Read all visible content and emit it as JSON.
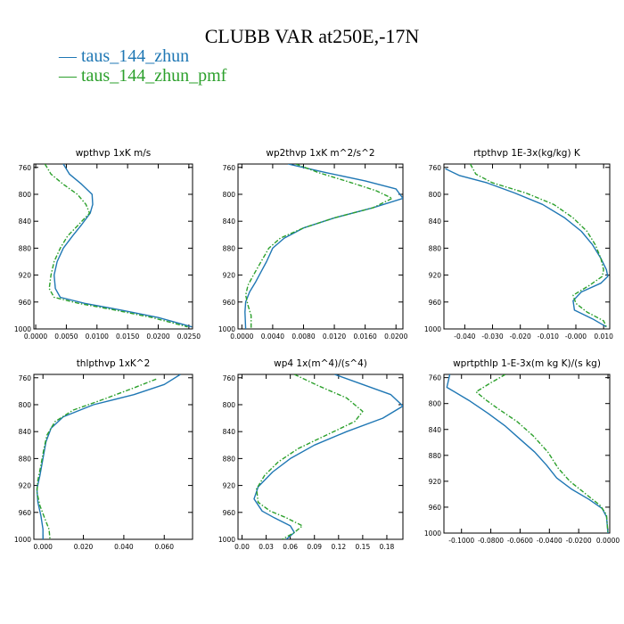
{
  "title": "CLUBB VAR at250E,-17N",
  "colors": {
    "series_0": "#1f77b4",
    "series_1": "#2ca02c"
  },
  "legend": [
    {
      "prefix": "— ",
      "label": "taus_144_zhun"
    },
    {
      "prefix": "— ",
      "label": "taus_144_zhun_pmf"
    }
  ],
  "chart_data": [
    {
      "type": "line",
      "title": "wpthvp  1xK m/s",
      "xlim": [
        -0.0003,
        0.0256
      ],
      "ylim": [
        755,
        1000
      ],
      "y_inverted": true,
      "xticks": [
        0.0,
        0.005,
        0.01,
        0.015,
        0.02,
        0.025
      ],
      "xtick_labels": [
        "0.0000",
        "0.0050",
        "0.0100",
        "0.0150",
        "0.0200",
        "0.0250"
      ],
      "yticks": [
        760,
        800,
        840,
        880,
        920,
        960,
        1000
      ],
      "ytick_labels": [
        "760",
        "800",
        "840",
        "880",
        "920",
        "960",
        "1000"
      ],
      "series": [
        {
          "name": "taus_144_zhun",
          "points": [
            [
              0.0045,
              755
            ],
            [
              0.0055,
              770
            ],
            [
              0.0075,
              785
            ],
            [
              0.0092,
              800
            ],
            [
              0.0093,
              815
            ],
            [
              0.0089,
              828
            ],
            [
              0.0075,
              845
            ],
            [
              0.006,
              862
            ],
            [
              0.0045,
              880
            ],
            [
              0.0035,
              900
            ],
            [
              0.003,
              920
            ],
            [
              0.0032,
              940
            ],
            [
              0.004,
              953
            ],
            [
              0.008,
              962
            ],
            [
              0.014,
              972
            ],
            [
              0.02,
              983
            ],
            [
              0.0255,
              997
            ]
          ]
        },
        {
          "name": "taus_144_zhun_pmf",
          "points": [
            [
              0.0015,
              755
            ],
            [
              0.0025,
              770
            ],
            [
              0.0045,
              785
            ],
            [
              0.0068,
              800
            ],
            [
              0.0082,
              815
            ],
            [
              0.0088,
              828
            ],
            [
              0.007,
              845
            ],
            [
              0.0052,
              862
            ],
            [
              0.004,
              880
            ],
            [
              0.003,
              900
            ],
            [
              0.0025,
              920
            ],
            [
              0.0022,
              940
            ],
            [
              0.003,
              953
            ],
            [
              0.007,
              962
            ],
            [
              0.013,
              972
            ],
            [
              0.019,
              983
            ],
            [
              0.0248,
              997
            ]
          ]
        }
      ]
    },
    {
      "type": "line",
      "title": "wp2thvp  1xK m^2/s^2",
      "xlim": [
        -0.0005,
        0.0209
      ],
      "ylim": [
        755,
        1000
      ],
      "y_inverted": true,
      "xticks": [
        0.0,
        0.004,
        0.008,
        0.012,
        0.016,
        0.02
      ],
      "xtick_labels": [
        "0.0000",
        "0.0040",
        "0.0080",
        "0.0120",
        "0.0160",
        "0.0200"
      ],
      "yticks": [
        760,
        800,
        840,
        880,
        920,
        960,
        1000
      ],
      "ytick_labels": [
        "760",
        "800",
        "840",
        "880",
        "920",
        "960",
        "1000"
      ],
      "series": [
        {
          "name": "taus_144_zhun",
          "points": [
            [
              0.006,
              755
            ],
            [
              0.011,
              768
            ],
            [
              0.016,
              780
            ],
            [
              0.02,
              792
            ],
            [
              0.0209,
              806
            ],
            [
              0.017,
              820
            ],
            [
              0.012,
              835
            ],
            [
              0.008,
              850
            ],
            [
              0.0055,
              865
            ],
            [
              0.004,
              880
            ],
            [
              0.0032,
              900
            ],
            [
              0.0025,
              915
            ],
            [
              0.0018,
              930
            ],
            [
              0.001,
              945
            ],
            [
              0.0005,
              960
            ],
            [
              0.0004,
              975
            ],
            [
              0.0005,
              1000
            ]
          ]
        },
        {
          "name": "taus_144_zhun_pmf",
          "points": [
            [
              0.007,
              755
            ],
            [
              0.01,
              768
            ],
            [
              0.014,
              782
            ],
            [
              0.0175,
              795
            ],
            [
              0.0195,
              806
            ],
            [
              0.017,
              820
            ],
            [
              0.012,
              835
            ],
            [
              0.008,
              850
            ],
            [
              0.005,
              865
            ],
            [
              0.0035,
              880
            ],
            [
              0.0025,
              900
            ],
            [
              0.0015,
              920
            ],
            [
              0.0008,
              935
            ],
            [
              0.0005,
              950
            ],
            [
              0.0008,
              965
            ],
            [
              0.0012,
              980
            ],
            [
              0.0012,
              1000
            ]
          ]
        }
      ]
    },
    {
      "type": "line",
      "title": "rtpthvp  1E-3x(kg/kg) K",
      "xlim": [
        -0.0475,
        0.0122
      ],
      "ylim": [
        755,
        1000
      ],
      "y_inverted": true,
      "xticks": [
        -0.04,
        -0.03,
        -0.02,
        -0.01,
        0.0,
        0.01
      ],
      "xtick_labels": [
        "-0.040",
        "-0.030",
        "-0.020",
        "-0.010",
        "-0.000",
        "0.010"
      ],
      "yticks": [
        760,
        800,
        840,
        880,
        920,
        960,
        1000
      ],
      "ytick_labels": [
        "760",
        "800",
        "840",
        "880",
        "920",
        "960",
        "1000"
      ],
      "series": [
        {
          "name": "taus_144_zhun",
          "points": [
            [
              -0.047,
              762
            ],
            [
              -0.042,
              772
            ],
            [
              -0.032,
              783
            ],
            [
              -0.022,
              798
            ],
            [
              -0.012,
              815
            ],
            [
              -0.004,
              835
            ],
            [
              0.002,
              855
            ],
            [
              0.006,
              875
            ],
            [
              0.009,
              895
            ],
            [
              0.011,
              912
            ],
            [
              0.0115,
              922
            ],
            [
              0.009,
              932
            ],
            [
              0.002,
              945
            ],
            [
              -0.001,
              958
            ],
            [
              -0.0005,
              972
            ],
            [
              0.006,
              985
            ],
            [
              0.011,
              997
            ]
          ]
        },
        {
          "name": "taus_144_zhun_pmf",
          "points": [
            [
              -0.038,
              755
            ],
            [
              -0.036,
              770
            ],
            [
              -0.03,
              783
            ],
            [
              -0.018,
              798
            ],
            [
              -0.008,
              815
            ],
            [
              -0.001,
              835
            ],
            [
              0.004,
              855
            ],
            [
              0.007,
              875
            ],
            [
              0.009,
              895
            ],
            [
              0.01,
              912
            ],
            [
              0.0095,
              922
            ],
            [
              0.005,
              935
            ],
            [
              -0.001,
              950
            ],
            [
              0.0,
              962
            ],
            [
              0.004,
              975
            ],
            [
              0.01,
              988
            ],
            [
              0.011,
              997
            ]
          ]
        }
      ]
    },
    {
      "type": "line",
      "title": "thlpthvp  1xK^2",
      "xlim": [
        -0.0045,
        0.074
      ],
      "ylim": [
        755,
        1000
      ],
      "y_inverted": true,
      "xticks": [
        0.0,
        0.02,
        0.04,
        0.06
      ],
      "xtick_labels": [
        "0.000",
        "0.020",
        "0.040",
        "0.060"
      ],
      "yticks": [
        760,
        800,
        840,
        880,
        920,
        960,
        1000
      ],
      "ytick_labels": [
        "760",
        "800",
        "840",
        "880",
        "920",
        "960",
        "1000"
      ],
      "series": [
        {
          "name": "taus_144_zhun",
          "points": [
            [
              0.068,
              755
            ],
            [
              0.06,
              770
            ],
            [
              0.045,
              785
            ],
            [
              0.025,
              800
            ],
            [
              0.01,
              818
            ],
            [
              0.004,
              835
            ],
            [
              0.0015,
              855
            ],
            [
              0.0,
              880
            ],
            [
              -0.0015,
              905
            ],
            [
              -0.003,
              925
            ],
            [
              -0.0025,
              945
            ],
            [
              -0.001,
              965
            ],
            [
              0.0,
              985
            ],
            [
              0.0,
              1000
            ]
          ]
        },
        {
          "name": "taus_144_zhun_pmf",
          "points": [
            [
              0.056,
              762
            ],
            [
              0.045,
              775
            ],
            [
              0.03,
              792
            ],
            [
              0.015,
              808
            ],
            [
              0.006,
              825
            ],
            [
              0.002,
              845
            ],
            [
              0.0005,
              865
            ],
            [
              -0.001,
              890
            ],
            [
              -0.0025,
              912
            ],
            [
              -0.003,
              930
            ],
            [
              -0.0015,
              950
            ],
            [
              0.001,
              970
            ],
            [
              0.003,
              985
            ],
            [
              0.0035,
              1000
            ]
          ]
        }
      ]
    },
    {
      "type": "line",
      "title": "wp4  1x(m^4)/(s^4)",
      "xlim": [
        -0.005,
        0.2
      ],
      "ylim": [
        755,
        1000
      ],
      "y_inverted": true,
      "xticks": [
        0.0,
        0.03,
        0.06,
        0.09,
        0.12,
        0.15,
        0.18
      ],
      "xtick_labels": [
        "0.00",
        "0.03",
        "0.06",
        "0.09",
        "0.12",
        "0.15",
        "0.18"
      ],
      "yticks": [
        760,
        800,
        840,
        880,
        920,
        960,
        1000
      ],
      "ytick_labels": [
        "760",
        "800",
        "840",
        "880",
        "920",
        "960",
        "1000"
      ],
      "series": [
        {
          "name": "taus_144_zhun",
          "points": [
            [
              0.115,
              755
            ],
            [
              0.15,
              770
            ],
            [
              0.185,
              785
            ],
            [
              0.2,
              802
            ],
            [
              0.175,
              820
            ],
            [
              0.13,
              840
            ],
            [
              0.09,
              860
            ],
            [
              0.06,
              880
            ],
            [
              0.038,
              900
            ],
            [
              0.02,
              922
            ],
            [
              0.015,
              940
            ],
            [
              0.025,
              958
            ],
            [
              0.04,
              968
            ],
            [
              0.06,
              980
            ],
            [
              0.065,
              990
            ],
            [
              0.055,
              1000
            ]
          ]
        },
        {
          "name": "taus_144_zhun_pmf",
          "points": [
            [
              0.065,
              755
            ],
            [
              0.095,
              772
            ],
            [
              0.13,
              790
            ],
            [
              0.15,
              810
            ],
            [
              0.14,
              825
            ],
            [
              0.105,
              845
            ],
            [
              0.07,
              865
            ],
            [
              0.045,
              885
            ],
            [
              0.028,
              905
            ],
            [
              0.018,
              925
            ],
            [
              0.02,
              945
            ],
            [
              0.035,
              958
            ],
            [
              0.055,
              968
            ],
            [
              0.075,
              980
            ],
            [
              0.065,
              990
            ],
            [
              0.05,
              1000
            ]
          ]
        }
      ]
    },
    {
      "type": "line",
      "title": "wprtpthlp  1-E-3x(m kg K)/(s kg)",
      "xlim": [
        -0.112,
        0.0012
      ],
      "ylim": [
        755,
        1000
      ],
      "y_inverted": true,
      "xticks": [
        -0.1,
        -0.08,
        -0.06,
        -0.04,
        -0.02,
        0.0
      ],
      "xtick_labels": [
        "-0.1000",
        "-0.0800",
        "-0.0600",
        "-0.0400",
        "-0.0200",
        "0.0000"
      ],
      "yticks": [
        760,
        800,
        840,
        880,
        920,
        960,
        1000
      ],
      "ytick_labels": [
        "760",
        "800",
        "840",
        "880",
        "920",
        "960",
        "1000"
      ],
      "series": [
        {
          "name": "taus_144_zhun",
          "points": [
            [
              -0.108,
              755
            ],
            [
              -0.11,
              775
            ],
            [
              -0.095,
              795
            ],
            [
              -0.082,
              815
            ],
            [
              -0.07,
              835
            ],
            [
              -0.06,
              855
            ],
            [
              -0.05,
              875
            ],
            [
              -0.042,
              895
            ],
            [
              -0.035,
              915
            ],
            [
              -0.025,
              932
            ],
            [
              -0.013,
              948
            ],
            [
              -0.004,
              962
            ],
            [
              -0.001,
              975
            ],
            [
              0.0,
              1000
            ]
          ]
        },
        {
          "name": "taus_144_zhun_pmf",
          "points": [
            [
              -0.07,
              755
            ],
            [
              -0.08,
              768
            ],
            [
              -0.09,
              782
            ],
            [
              -0.083,
              795
            ],
            [
              -0.075,
              808
            ],
            [
              -0.062,
              828
            ],
            [
              -0.051,
              850
            ],
            [
              -0.041,
              875
            ],
            [
              -0.034,
              900
            ],
            [
              -0.026,
              920
            ],
            [
              -0.015,
              940
            ],
            [
              -0.005,
              958
            ],
            [
              -0.001,
              972
            ],
            [
              0.0,
              1000
            ]
          ]
        }
      ]
    }
  ]
}
